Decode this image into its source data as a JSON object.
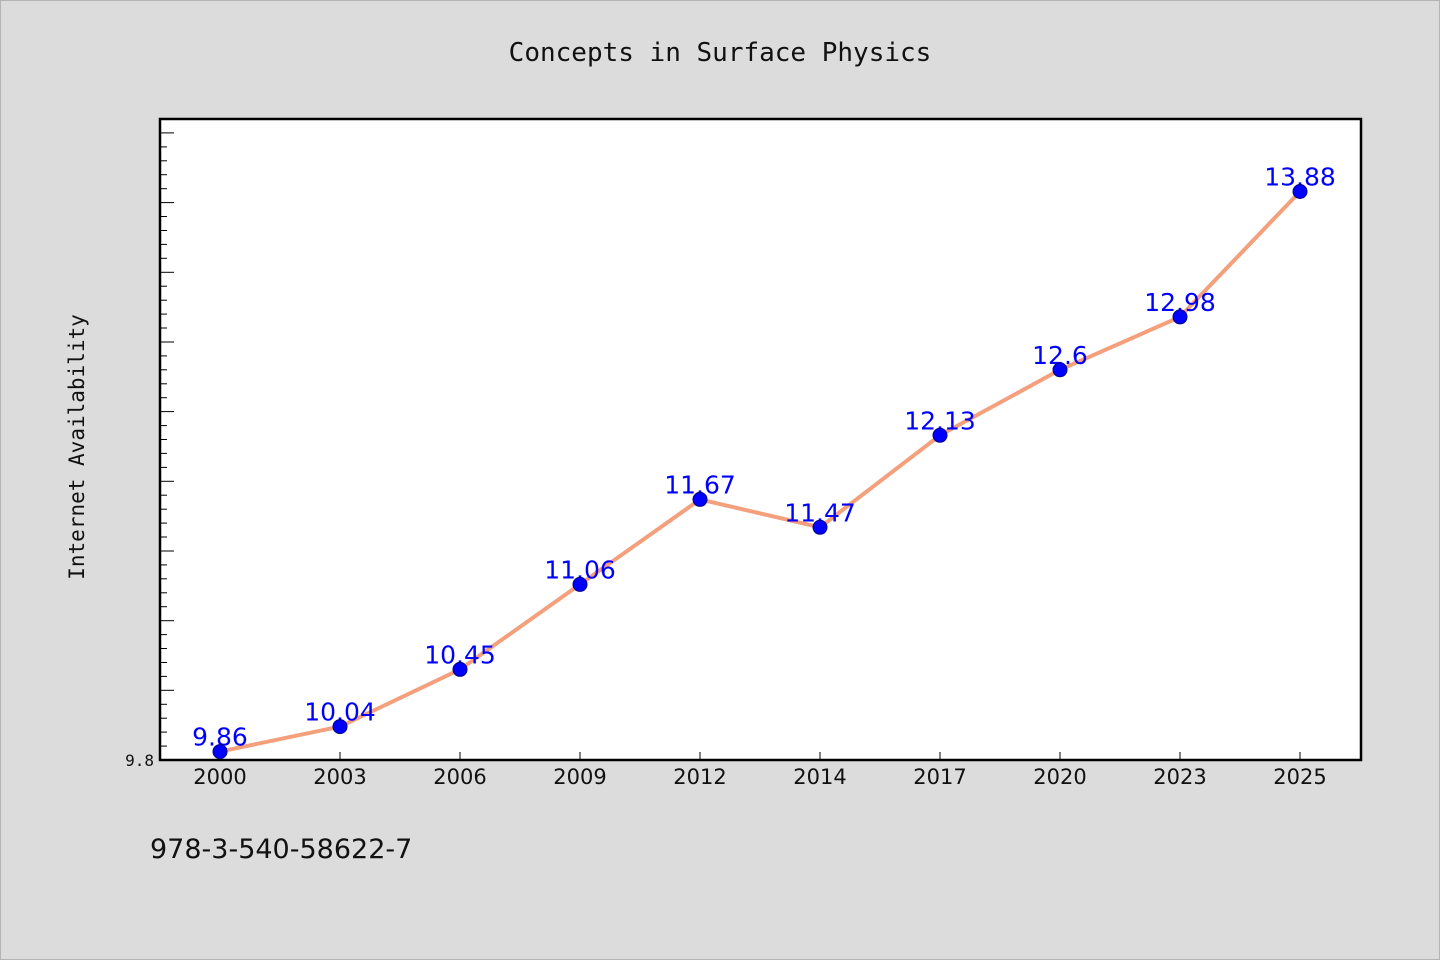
{
  "chart_data": {
    "type": "line",
    "title": "Concepts in Surface Physics",
    "xlabel": "",
    "ylabel": "Internet Availability",
    "categories": [
      "2000",
      "2003",
      "2006",
      "2009",
      "2012",
      "2014",
      "2017",
      "2020",
      "2023",
      "2025"
    ],
    "series": [
      {
        "values": [
          9.86,
          10.04,
          10.45,
          11.06,
          11.67,
          11.47,
          12.13,
          12.6,
          12.98,
          13.88
        ],
        "data_labels": [
          "9.86",
          "10.04",
          "10.45",
          "11.06",
          "11.67",
          "11.47",
          "12.13",
          "12.6",
          "12.98",
          "13.88"
        ]
      }
    ],
    "ylim": [
      9.8,
      14.4
    ],
    "y_tick_labels": [
      "9.8"
    ],
    "grid": false,
    "legend": "none",
    "colors": {
      "line": "#f4a07c",
      "marker": "#0000ff",
      "data_label": "#0000ff",
      "plot_background": "#ffffff",
      "figure_background": "#dcdcdc"
    }
  },
  "footnote": "978-3-540-58622-7"
}
